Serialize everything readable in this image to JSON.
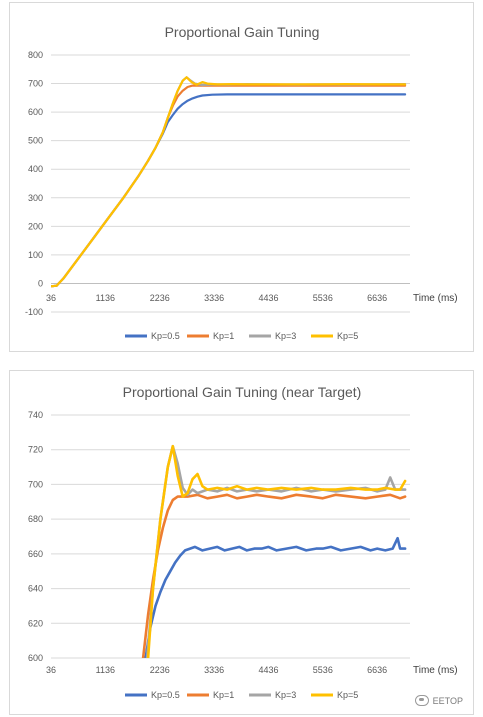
{
  "chart_data": [
    {
      "type": "line",
      "title": "Proportional Gain Tuning",
      "xlabel": "Time (ms)",
      "ylabel": "",
      "x_ticks": [
        36,
        1136,
        2236,
        3336,
        4436,
        5536,
        6636
      ],
      "xlim": [
        36,
        7300
      ],
      "y_ticks": [
        -100,
        0,
        100,
        200,
        300,
        400,
        500,
        600,
        700,
        800
      ],
      "ylim": [
        -100,
        800
      ],
      "grid": true,
      "legend": "bottom",
      "series": [
        {
          "name": "Kp=0.5",
          "color": "#4472c4",
          "points": [
            [
              36,
              -10
            ],
            [
              150,
              -8
            ],
            [
              300,
              20
            ],
            [
              600,
              90
            ],
            [
              900,
              160
            ],
            [
              1200,
              230
            ],
            [
              1500,
              300
            ],
            [
              1800,
              375
            ],
            [
              2000,
              430
            ],
            [
              2150,
              475
            ],
            [
              2300,
              525
            ],
            [
              2400,
              565
            ],
            [
              2500,
              590
            ],
            [
              2600,
              612
            ],
            [
              2700,
              628
            ],
            [
              2800,
              640
            ],
            [
              2900,
              648
            ],
            [
              3000,
              654
            ],
            [
              3100,
              658
            ],
            [
              3300,
              661
            ],
            [
              3600,
              662
            ],
            [
              4000,
              662
            ],
            [
              4436,
              662
            ],
            [
              5000,
              662
            ],
            [
              5536,
              662
            ],
            [
              6000,
              662
            ],
            [
              6636,
              662
            ],
            [
              7200,
              662
            ]
          ]
        },
        {
          "name": "Kp=1",
          "color": "#ed7d31",
          "points": [
            [
              36,
              -10
            ],
            [
              150,
              -8
            ],
            [
              300,
              20
            ],
            [
              600,
              90
            ],
            [
              900,
              160
            ],
            [
              1200,
              230
            ],
            [
              1500,
              300
            ],
            [
              1800,
              375
            ],
            [
              2000,
              430
            ],
            [
              2150,
              475
            ],
            [
              2300,
              530
            ],
            [
              2400,
              580
            ],
            [
              2500,
              622
            ],
            [
              2600,
              655
            ],
            [
              2700,
              675
            ],
            [
              2800,
              688
            ],
            [
              2900,
              693
            ],
            [
              3100,
              693
            ],
            [
              3400,
              693
            ],
            [
              4000,
              693
            ],
            [
              4436,
              693
            ],
            [
              5000,
              693
            ],
            [
              5536,
              693
            ],
            [
              6000,
              693
            ],
            [
              6636,
              693
            ],
            [
              7200,
              693
            ]
          ]
        },
        {
          "name": "Kp=3",
          "color": "#a5a5a5",
          "points": [
            [
              36,
              -10
            ],
            [
              150,
              -8
            ],
            [
              300,
              20
            ],
            [
              600,
              90
            ],
            [
              900,
              160
            ],
            [
              1200,
              230
            ],
            [
              1500,
              300
            ],
            [
              1800,
              375
            ],
            [
              2000,
              430
            ],
            [
              2150,
              475
            ],
            [
              2300,
              530
            ],
            [
              2400,
              580
            ],
            [
              2500,
              630
            ],
            [
              2600,
              675
            ],
            [
              2700,
              710
            ],
            [
              2780,
              722
            ],
            [
              2850,
              712
            ],
            [
              2950,
              700
            ],
            [
              3100,
              695
            ],
            [
              3300,
              697
            ],
            [
              3600,
              696
            ],
            [
              4000,
              698
            ],
            [
              4436,
              697
            ],
            [
              5000,
              696
            ],
            [
              5536,
              697
            ],
            [
              6000,
              696
            ],
            [
              6636,
              697
            ],
            [
              7200,
              698
            ]
          ]
        },
        {
          "name": "Kp=5",
          "color": "#ffc000",
          "points": [
            [
              36,
              -10
            ],
            [
              150,
              -8
            ],
            [
              300,
              20
            ],
            [
              600,
              90
            ],
            [
              900,
              160
            ],
            [
              1200,
              230
            ],
            [
              1500,
              300
            ],
            [
              1800,
              375
            ],
            [
              2000,
              430
            ],
            [
              2150,
              475
            ],
            [
              2300,
              530
            ],
            [
              2400,
              580
            ],
            [
              2500,
              630
            ],
            [
              2600,
              675
            ],
            [
              2700,
              710
            ],
            [
              2780,
              722
            ],
            [
              2880,
              705
            ],
            [
              2980,
              696
            ],
            [
              3100,
              705
            ],
            [
              3200,
              700
            ],
            [
              3400,
              697
            ],
            [
              3700,
              698
            ],
            [
              4000,
              697
            ],
            [
              4436,
              697
            ],
            [
              5000,
              697
            ],
            [
              5536,
              697
            ],
            [
              6000,
              698
            ],
            [
              6636,
              697
            ],
            [
              7200,
              697
            ]
          ]
        }
      ]
    },
    {
      "type": "line",
      "title": "Proportional  Gain Tuning (near  Target)",
      "xlabel": "Time (ms)",
      "ylabel": "",
      "x_ticks": [
        36,
        1136,
        2236,
        3336,
        4436,
        5536,
        6636
      ],
      "xlim": [
        36,
        7300
      ],
      "y_ticks": [
        600,
        620,
        640,
        660,
        680,
        700,
        720,
        740
      ],
      "ylim": [
        600,
        740
      ],
      "grid": true,
      "legend": "bottom",
      "series": [
        {
          "name": "Kp=0.5",
          "color": "#4472c4",
          "points": [
            [
              1950,
              600
            ],
            [
              2050,
              618
            ],
            [
              2150,
              630
            ],
            [
              2250,
              638
            ],
            [
              2350,
              645
            ],
            [
              2450,
              650
            ],
            [
              2550,
              655
            ],
            [
              2650,
              659
            ],
            [
              2750,
              662
            ],
            [
              2850,
              663
            ],
            [
              2950,
              664
            ],
            [
              3100,
              662
            ],
            [
              3250,
              663
            ],
            [
              3400,
              664
            ],
            [
              3550,
              662
            ],
            [
              3700,
              663
            ],
            [
              3850,
              664
            ],
            [
              4000,
              662
            ],
            [
              4150,
              663
            ],
            [
              4300,
              663
            ],
            [
              4436,
              664
            ],
            [
              4600,
              662
            ],
            [
              4800,
              663
            ],
            [
              5000,
              664
            ],
            [
              5200,
              662
            ],
            [
              5400,
              663
            ],
            [
              5536,
              663
            ],
            [
              5700,
              664
            ],
            [
              5900,
              662
            ],
            [
              6100,
              663
            ],
            [
              6300,
              664
            ],
            [
              6500,
              662
            ],
            [
              6636,
              663
            ],
            [
              6800,
              662
            ],
            [
              6950,
              663
            ],
            [
              7050,
              669
            ],
            [
              7100,
              663
            ],
            [
              7200,
              663
            ]
          ]
        },
        {
          "name": "Kp=1",
          "color": "#ed7d31",
          "points": [
            [
              1900,
              600
            ],
            [
              2000,
              625
            ],
            [
              2100,
              645
            ],
            [
              2200,
              662
            ],
            [
              2300,
              675
            ],
            [
              2400,
              685
            ],
            [
              2500,
              691
            ],
            [
              2600,
              693
            ],
            [
              2800,
              693
            ],
            [
              3000,
              694
            ],
            [
              3200,
              692
            ],
            [
              3400,
              693
            ],
            [
              3600,
              694
            ],
            [
              3800,
              692
            ],
            [
              4000,
              693
            ],
            [
              4200,
              694
            ],
            [
              4436,
              693
            ],
            [
              4700,
              692
            ],
            [
              5000,
              694
            ],
            [
              5300,
              693
            ],
            [
              5536,
              692
            ],
            [
              5800,
              694
            ],
            [
              6100,
              693
            ],
            [
              6400,
              692
            ],
            [
              6636,
              693
            ],
            [
              6900,
              694
            ],
            [
              7100,
              692
            ],
            [
              7200,
              693
            ]
          ]
        },
        {
          "name": "Kp=3",
          "color": "#a5a5a5",
          "points": [
            [
              1980,
              600
            ],
            [
              2100,
              640
            ],
            [
              2250,
              680
            ],
            [
              2400,
              710
            ],
            [
              2500,
              722
            ],
            [
              2600,
              712
            ],
            [
              2700,
              698
            ],
            [
              2800,
              694
            ],
            [
              2900,
              697
            ],
            [
              3000,
              695
            ],
            [
              3200,
              697
            ],
            [
              3400,
              696
            ],
            [
              3600,
              698
            ],
            [
              3800,
              696
            ],
            [
              4000,
              697
            ],
            [
              4200,
              696
            ],
            [
              4436,
              697
            ],
            [
              4700,
              696
            ],
            [
              5000,
              698
            ],
            [
              5300,
              696
            ],
            [
              5536,
              697
            ],
            [
              5800,
              696
            ],
            [
              6100,
              697
            ],
            [
              6400,
              698
            ],
            [
              6636,
              696
            ],
            [
              6800,
              697
            ],
            [
              6900,
              704
            ],
            [
              7000,
              697
            ],
            [
              7200,
              697
            ]
          ]
        },
        {
          "name": "Kp=5",
          "color": "#ffc000",
          "points": [
            [
              2000,
              600
            ],
            [
              2100,
              640
            ],
            [
              2250,
              680
            ],
            [
              2400,
              710
            ],
            [
              2500,
              722
            ],
            [
              2600,
              705
            ],
            [
              2700,
              693
            ],
            [
              2800,
              695
            ],
            [
              2900,
              703
            ],
            [
              3000,
              706
            ],
            [
              3100,
              699
            ],
            [
              3200,
              697
            ],
            [
              3400,
              698
            ],
            [
              3600,
              697
            ],
            [
              3800,
              699
            ],
            [
              4000,
              697
            ],
            [
              4200,
              698
            ],
            [
              4436,
              697
            ],
            [
              4700,
              698
            ],
            [
              5000,
              697
            ],
            [
              5300,
              698
            ],
            [
              5536,
              697
            ],
            [
              5800,
              697
            ],
            [
              6100,
              698
            ],
            [
              6400,
              697
            ],
            [
              6636,
              697
            ],
            [
              6800,
              698
            ],
            [
              7000,
              697
            ],
            [
              7100,
              697
            ],
            [
              7200,
              702
            ]
          ]
        }
      ]
    }
  ],
  "watermark": {
    "text": "EETOP"
  }
}
